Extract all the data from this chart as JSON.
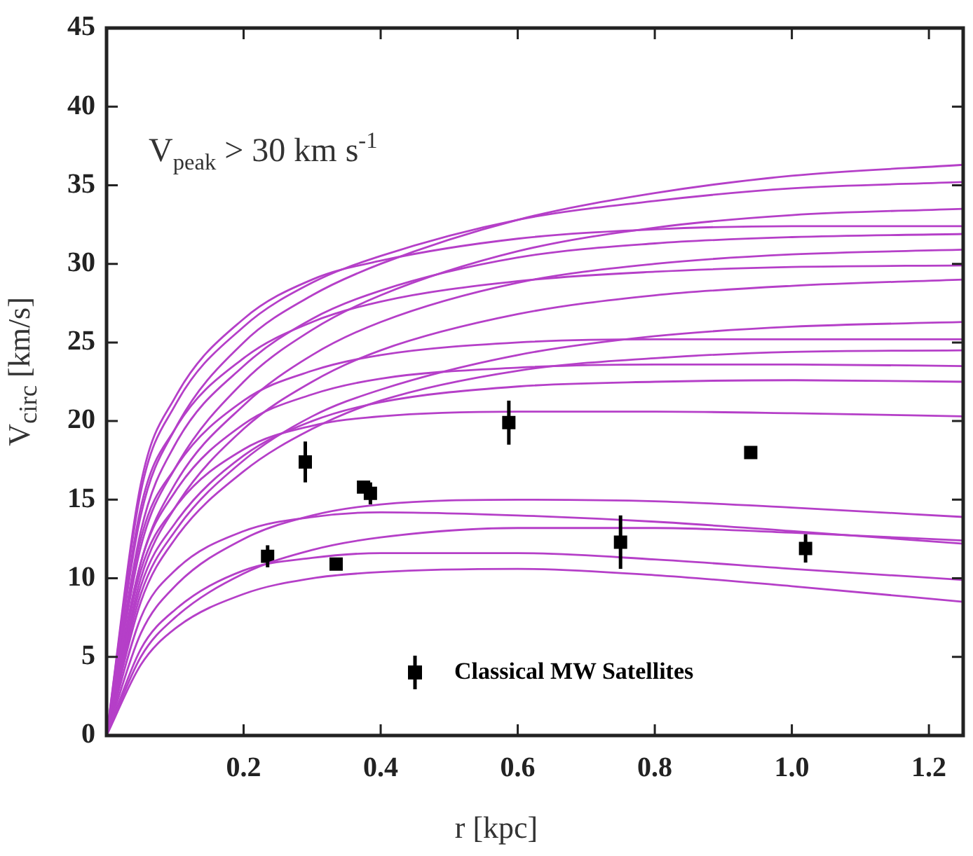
{
  "chart_data": {
    "type": "line",
    "xlabel": "r [kpc]",
    "ylabel": "V$_{circ}$ [km/s]",
    "annotations": [
      "V$_{peak}$ > 30 km s$^{-1}$"
    ],
    "x": [
      0,
      0.05,
      0.1,
      0.2,
      0.3,
      0.4,
      0.6,
      0.8,
      1.0,
      1.25
    ],
    "xlim": [
      0,
      1.25
    ],
    "xticks": [
      0.2,
      0.4,
      0.6,
      0.8,
      {
        "value": 1.0,
        "label": "1.0"
      },
      1.2
    ],
    "ylim": [
      0,
      45
    ],
    "yticks": [
      0,
      5,
      10,
      15,
      20,
      25,
      30,
      35,
      40,
      45
    ],
    "grid": false,
    "legend": "bottom",
    "marker": "none",
    "line_style": "solid",
    "series": [
      {
        "color": "#b53fc8",
        "values": [
          0,
          14,
          19.5,
          25,
          28,
          30,
          32.8,
          34.5,
          35.6,
          36.3
        ]
      },
      {
        "color": "#b53fc8",
        "values": [
          0,
          15.5,
          21,
          26,
          28.8,
          30.5,
          32.8,
          34,
          34.8,
          35.2
        ]
      },
      {
        "color": "#b53fc8",
        "values": [
          0,
          12,
          17,
          22.5,
          25.8,
          28,
          30.8,
          32.3,
          33.1,
          33.5
        ]
      },
      {
        "color": "#b53fc8",
        "values": [
          0,
          16,
          21.5,
          26.5,
          29,
          30.2,
          31.6,
          32.2,
          32.4,
          32.4
        ]
      },
      {
        "color": "#b53fc8",
        "values": [
          0,
          13,
          18.5,
          23.5,
          26.5,
          28.3,
          30.4,
          31.3,
          31.7,
          31.9
        ]
      },
      {
        "color": "#b53fc8",
        "values": [
          0,
          11,
          16,
          21,
          24.2,
          26.3,
          28.8,
          30,
          30.6,
          30.9
        ]
      },
      {
        "color": "#b53fc8",
        "values": [
          0,
          14.5,
          19.5,
          24,
          26.3,
          27.6,
          28.9,
          29.5,
          29.8,
          29.9
        ]
      },
      {
        "color": "#b53fc8",
        "values": [
          0,
          10,
          14.5,
          19.5,
          22.5,
          24.5,
          26.8,
          28,
          28.6,
          29.0
        ]
      },
      {
        "color": "#b53fc8",
        "values": [
          0,
          9,
          13,
          17.5,
          20.3,
          22,
          24.2,
          25.4,
          26,
          26.3
        ]
      },
      {
        "color": "#b53fc8",
        "values": [
          0,
          12.5,
          17,
          21.3,
          23.2,
          24.2,
          25,
          25.2,
          25.2,
          25.2
        ]
      },
      {
        "color": "#b53fc8",
        "values": [
          0,
          8.5,
          12.5,
          16.8,
          19.5,
          21.3,
          23.2,
          24,
          24.4,
          24.5
        ]
      },
      {
        "color": "#b53fc8",
        "values": [
          0,
          11,
          15.5,
          19.8,
          21.7,
          22.7,
          23.4,
          23.6,
          23.6,
          23.5
        ]
      },
      {
        "color": "#b53fc8",
        "values": [
          0,
          9.5,
          13.5,
          17.8,
          20,
          21.2,
          22.2,
          22.5,
          22.6,
          22.5
        ]
      },
      {
        "color": "#b53fc8",
        "values": [
          0,
          10.5,
          14.5,
          18.2,
          19.7,
          20.3,
          20.6,
          20.6,
          20.5,
          20.3
        ]
      },
      {
        "color": "#b53fc8",
        "values": [
          0,
          6.5,
          9.5,
          12.5,
          14,
          14.7,
          15,
          14.9,
          14.5,
          13.9
        ]
      },
      {
        "color": "#b53fc8",
        "values": [
          0,
          7.5,
          10.5,
          13,
          13.9,
          14.2,
          14,
          13.6,
          13,
          12.2
        ]
      },
      {
        "color": "#b53fc8",
        "values": [
          0,
          5,
          7.5,
          10.3,
          11.8,
          12.6,
          13.2,
          13.2,
          12.9,
          12.4
        ]
      },
      {
        "color": "#b53fc8",
        "values": [
          0,
          5.5,
          8,
          10.5,
          11.3,
          11.6,
          11.6,
          11.2,
          10.6,
          9.9
        ]
      },
      {
        "color": "#b53fc8",
        "values": [
          0,
          4.5,
          6.8,
          9,
          10,
          10.4,
          10.6,
          10.2,
          9.5,
          8.5
        ]
      },
      {
        "type": "scatter",
        "name": "Classical MW Satellites",
        "color": "#000000",
        "marker": "square",
        "x": [
          0.235,
          0.29,
          0.335,
          0.375,
          0.385,
          0.587,
          0.75,
          0.94,
          1.02
        ],
        "values": [
          11.4,
          17.4,
          10.9,
          15.8,
          15.4,
          19.9,
          12.3,
          18.0,
          11.9
        ],
        "errors": [
          0.7,
          1.3,
          null,
          null,
          0.7,
          1.4,
          1.7,
          null,
          0.9
        ]
      }
    ]
  }
}
